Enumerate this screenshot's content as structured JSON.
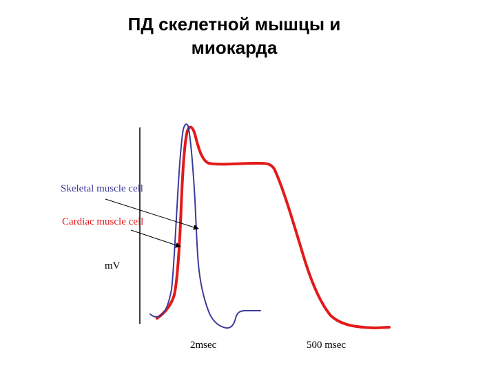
{
  "title": {
    "line1": "ПД скелетной мышцы и",
    "line2": "миокарда"
  },
  "labels": {
    "skeletal": "Skeletal muscle cell",
    "cardiac": "Cardiac muscle cell",
    "y_unit": "mV",
    "time_skeletal": "2msec",
    "time_cardiac": "500 msec"
  },
  "colors": {
    "skeletal": "#3b3b9b",
    "cardiac": "#e31a1a",
    "axis": "#000000"
  }
}
